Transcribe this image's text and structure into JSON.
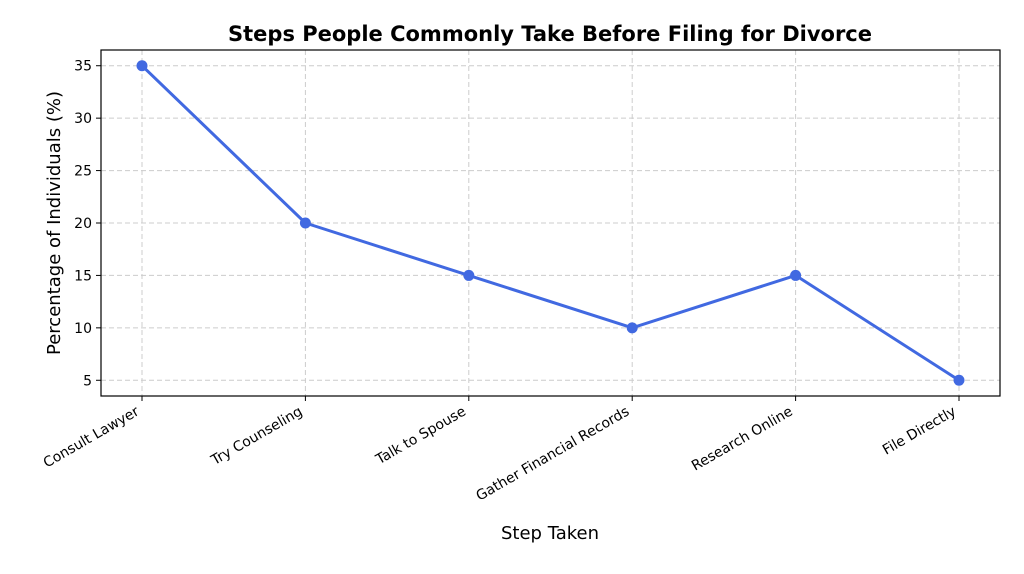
{
  "chart_data": {
    "type": "line",
    "title": "Steps People Commonly Take Before Filing for Divorce",
    "xlabel": "Step Taken",
    "ylabel": "Percentage of Individuals (%)",
    "categories": [
      "Consult Lawyer",
      "Try Counseling",
      "Talk to Spouse",
      "Gather Financial Records",
      "Research Online",
      "File Directly"
    ],
    "values": [
      35,
      20,
      15,
      10,
      15,
      5
    ],
    "ylim": [
      3.5,
      36.5
    ],
    "yticks": [
      5,
      10,
      15,
      20,
      25,
      30,
      35
    ],
    "grid": true,
    "color": "#4169e1"
  }
}
